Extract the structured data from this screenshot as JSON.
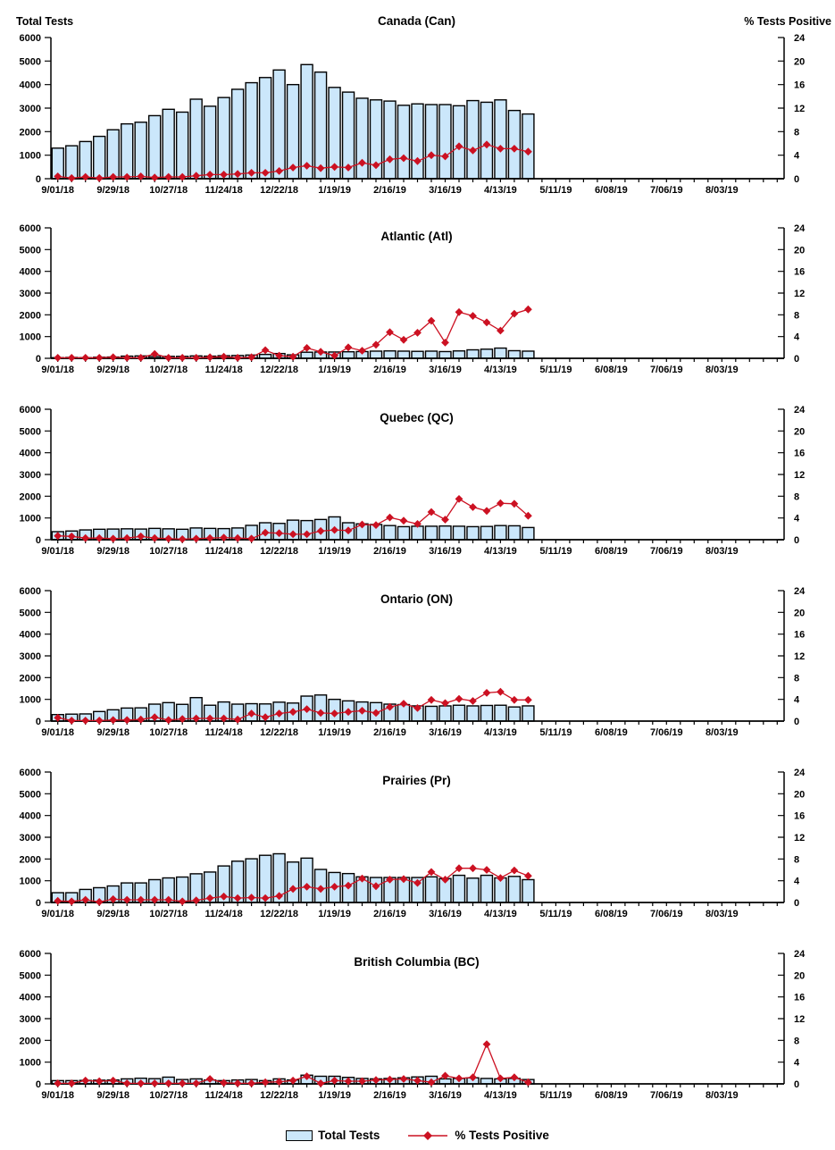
{
  "page": {
    "background": "#FFFFFF"
  },
  "colors": {
    "bar_fill": "#CBE7FB",
    "bar_stroke": "#000000",
    "line": "#CC1122",
    "text": "#000000",
    "axis": "#000000"
  },
  "axes": {
    "left_title": "Total Tests",
    "right_title": "% Tests Positive",
    "left_ticks": [
      "6000",
      "5000",
      "4000",
      "3000",
      "2000",
      "1000",
      "0"
    ],
    "right_ticks": [
      "24",
      "20",
      "16",
      "12",
      "8",
      "4",
      "0"
    ],
    "ylim_left": [
      0,
      6000
    ],
    "ylim_right": [
      0,
      24
    ],
    "x_tick_labels": [
      "9/01/18",
      "9/29/18",
      "10/27/18",
      "11/24/18",
      "12/22/18",
      "1/19/19",
      "2/16/19",
      "3/16/19",
      "4/13/19",
      "5/11/19",
      "6/08/19",
      "7/06/19",
      "8/03/19"
    ],
    "label_every_n_weeks": 4,
    "total_week_slots": 53,
    "grid": "off",
    "legend_position": "bottom-center"
  },
  "legend": {
    "items": [
      {
        "label": "Total Tests",
        "marker": "bar-swatch"
      },
      {
        "label": "% Tests Positive",
        "marker": "line-diamond"
      }
    ]
  },
  "chart_data": [
    {
      "type": "bar",
      "title": "Canada (Can)",
      "categories": [
        "9/01/18",
        "9/08/18",
        "9/15/18",
        "9/22/18",
        "9/29/18",
        "10/06/18",
        "10/13/18",
        "10/20/18",
        "10/27/18",
        "11/03/18",
        "11/10/18",
        "11/17/18",
        "11/24/18",
        "12/01/18",
        "12/08/18",
        "12/15/18",
        "12/22/18",
        "12/29/18",
        "1/05/19",
        "1/12/19",
        "1/19/19",
        "1/26/19",
        "2/02/19",
        "2/09/19",
        "2/16/19",
        "2/23/19",
        "3/02/19",
        "3/09/19",
        "3/16/19",
        "3/23/19",
        "3/30/19",
        "4/06/19",
        "4/13/19",
        "4/20/19",
        "4/27/19"
      ],
      "series": [
        {
          "name": "Total Tests",
          "type": "bar",
          "axis": "left",
          "values": [
            1300,
            1400,
            1580,
            1800,
            2080,
            2330,
            2400,
            2680,
            2950,
            2830,
            3380,
            3080,
            3450,
            3800,
            4080,
            4300,
            4620,
            4000,
            4850,
            4530,
            3880,
            3680,
            3420,
            3350,
            3300,
            3120,
            3180,
            3150,
            3150,
            3100,
            3320,
            3250,
            3350,
            2900,
            2750
          ]
        },
        {
          "name": "% Tests Positive",
          "type": "line",
          "axis": "right",
          "values": [
            0.4,
            0.1,
            0.3,
            0.1,
            0.3,
            0.3,
            0.4,
            0.2,
            0.3,
            0.3,
            0.5,
            0.7,
            0.7,
            0.8,
            1.0,
            1.0,
            1.3,
            1.9,
            2.2,
            1.8,
            2.0,
            1.9,
            2.7,
            2.3,
            3.3,
            3.5,
            3.0,
            4.0,
            3.8,
            5.5,
            4.8,
            5.8,
            5.1,
            5.1,
            4.6
          ]
        }
      ]
    },
    {
      "type": "bar",
      "title": "Atlantic (Atl)",
      "categories": [
        "9/01/18",
        "9/08/18",
        "9/15/18",
        "9/22/18",
        "9/29/18",
        "10/06/18",
        "10/13/18",
        "10/20/18",
        "10/27/18",
        "11/03/18",
        "11/10/18",
        "11/17/18",
        "11/24/18",
        "12/01/18",
        "12/08/18",
        "12/15/18",
        "12/22/18",
        "12/29/18",
        "1/05/19",
        "1/12/19",
        "1/19/19",
        "1/26/19",
        "2/02/19",
        "2/09/19",
        "2/16/19",
        "2/23/19",
        "3/02/19",
        "3/09/19",
        "3/16/19",
        "3/23/19",
        "3/30/19",
        "4/06/19",
        "4/13/19",
        "4/20/19",
        "4/27/19"
      ],
      "series": [
        {
          "name": "Total Tests",
          "type": "bar",
          "axis": "left",
          "values": [
            30,
            40,
            30,
            50,
            60,
            100,
            110,
            80,
            90,
            90,
            110,
            100,
            120,
            130,
            150,
            180,
            220,
            160,
            280,
            290,
            290,
            300,
            310,
            330,
            340,
            330,
            320,
            330,
            310,
            340,
            390,
            420,
            470,
            350,
            330
          ]
        },
        {
          "name": "% Tests Positive",
          "type": "line",
          "axis": "right",
          "values": [
            0.1,
            0.1,
            0.1,
            0.1,
            0.2,
            0.1,
            0.1,
            0.8,
            0.1,
            0.1,
            0.1,
            0.2,
            0.3,
            0.1,
            0.2,
            1.5,
            0.5,
            0.3,
            1.9,
            1.2,
            0.5,
            2.0,
            1.4,
            2.5,
            4.8,
            3.4,
            4.7,
            6.9,
            2.9,
            8.5,
            7.8,
            6.6,
            5.1,
            8.2,
            9.0
          ]
        }
      ]
    },
    {
      "type": "bar",
      "title": "Quebec (QC)",
      "categories": [
        "9/01/18",
        "9/08/18",
        "9/15/18",
        "9/22/18",
        "9/29/18",
        "10/06/18",
        "10/13/18",
        "10/20/18",
        "10/27/18",
        "11/03/18",
        "11/10/18",
        "11/17/18",
        "11/24/18",
        "12/01/18",
        "12/08/18",
        "12/15/18",
        "12/22/18",
        "12/29/18",
        "1/05/19",
        "1/12/19",
        "1/19/19",
        "1/26/19",
        "2/02/19",
        "2/09/19",
        "2/16/19",
        "2/23/19",
        "3/02/19",
        "3/09/19",
        "3/16/19",
        "3/23/19",
        "3/30/19",
        "4/06/19",
        "4/13/19",
        "4/20/19",
        "4/27/19"
      ],
      "series": [
        {
          "name": "Total Tests",
          "type": "bar",
          "axis": "left",
          "values": [
            370,
            400,
            450,
            480,
            490,
            500,
            490,
            520,
            500,
            480,
            540,
            520,
            510,
            540,
            660,
            780,
            750,
            900,
            880,
            930,
            1050,
            780,
            730,
            700,
            650,
            600,
            620,
            620,
            630,
            620,
            600,
            610,
            650,
            640,
            560
          ]
        },
        {
          "name": "% Tests Positive",
          "type": "line",
          "axis": "right",
          "values": [
            0.7,
            0.6,
            0.3,
            0.3,
            0.2,
            0.3,
            0.6,
            0.3,
            0.2,
            0.1,
            0.2,
            0.3,
            0.4,
            0.3,
            0.2,
            1.3,
            1.2,
            1.0,
            1.0,
            1.6,
            1.8,
            1.7,
            2.8,
            2.7,
            4.1,
            3.5,
            2.9,
            5.1,
            3.7,
            7.5,
            6.0,
            5.3,
            6.7,
            6.6,
            4.4
          ]
        }
      ]
    },
    {
      "type": "bar",
      "title": "Ontario (ON)",
      "categories": [
        "9/01/18",
        "9/08/18",
        "9/15/18",
        "9/22/18",
        "9/29/18",
        "10/06/18",
        "10/13/18",
        "10/20/18",
        "10/27/18",
        "11/03/18",
        "11/10/18",
        "11/17/18",
        "11/24/18",
        "12/01/18",
        "12/08/18",
        "12/15/18",
        "12/22/18",
        "12/29/18",
        "1/05/19",
        "1/12/19",
        "1/19/19",
        "1/26/19",
        "2/02/19",
        "2/09/19",
        "2/16/19",
        "2/23/19",
        "3/02/19",
        "3/09/19",
        "3/16/19",
        "3/23/19",
        "3/30/19",
        "4/06/19",
        "4/13/19",
        "4/20/19",
        "4/27/19"
      ],
      "series": [
        {
          "name": "Total Tests",
          "type": "bar",
          "axis": "left",
          "values": [
            300,
            320,
            330,
            440,
            520,
            600,
            610,
            780,
            850,
            770,
            1080,
            730,
            880,
            780,
            800,
            790,
            870,
            830,
            1150,
            1200,
            1000,
            930,
            880,
            850,
            780,
            760,
            700,
            680,
            700,
            730,
            700,
            720,
            730,
            650,
            700
          ]
        },
        {
          "name": "% Tests Positive",
          "type": "line",
          "axis": "right",
          "values": [
            0.6,
            0.1,
            0.1,
            0.1,
            0.2,
            0.2,
            0.3,
            0.7,
            0.2,
            0.4,
            0.5,
            0.5,
            0.5,
            0.3,
            1.4,
            0.7,
            1.4,
            1.7,
            2.2,
            1.5,
            1.4,
            1.7,
            1.9,
            1.5,
            2.6,
            3.2,
            2.4,
            3.9,
            3.3,
            4.1,
            3.7,
            5.2,
            5.4,
            3.9,
            3.9
          ]
        }
      ]
    },
    {
      "type": "bar",
      "title": "Prairies (Pr)",
      "categories": [
        "9/01/18",
        "9/08/18",
        "9/15/18",
        "9/22/18",
        "9/29/18",
        "10/06/18",
        "10/13/18",
        "10/20/18",
        "10/27/18",
        "11/03/18",
        "11/10/18",
        "11/17/18",
        "11/24/18",
        "12/01/18",
        "12/08/18",
        "12/15/18",
        "12/22/18",
        "12/29/18",
        "1/05/19",
        "1/12/19",
        "1/19/19",
        "1/26/19",
        "2/02/19",
        "2/09/19",
        "2/16/19",
        "2/23/19",
        "3/02/19",
        "3/09/19",
        "3/16/19",
        "3/23/19",
        "3/30/19",
        "4/06/19",
        "4/13/19",
        "4/20/19",
        "4/27/19"
      ],
      "series": [
        {
          "name": "Total Tests",
          "type": "bar",
          "axis": "left",
          "values": [
            450,
            450,
            600,
            680,
            760,
            900,
            900,
            1050,
            1130,
            1170,
            1320,
            1400,
            1680,
            1900,
            2010,
            2170,
            2240,
            1860,
            2040,
            1520,
            1380,
            1330,
            1180,
            1150,
            1150,
            1150,
            1150,
            1180,
            1100,
            1250,
            1120,
            1250,
            1130,
            1200,
            1050
          ]
        },
        {
          "name": "% Tests Positive",
          "type": "line",
          "axis": "right",
          "values": [
            0.3,
            0.2,
            0.5,
            0.1,
            0.6,
            0.5,
            0.5,
            0.5,
            0.5,
            0.2,
            0.4,
            0.8,
            1.1,
            0.8,
            0.9,
            0.8,
            1.2,
            2.5,
            2.9,
            2.5,
            2.9,
            3.1,
            4.4,
            3.0,
            4.2,
            4.3,
            3.6,
            5.6,
            4.2,
            6.3,
            6.3,
            6.0,
            4.5,
            5.9,
            4.9
          ]
        }
      ]
    },
    {
      "type": "bar",
      "title": "British Columbia (BC)",
      "categories": [
        "9/01/18",
        "9/08/18",
        "9/15/18",
        "9/22/18",
        "9/29/18",
        "10/06/18",
        "10/13/18",
        "10/20/18",
        "10/27/18",
        "11/03/18",
        "11/10/18",
        "11/17/18",
        "11/24/18",
        "12/01/18",
        "12/08/18",
        "12/15/18",
        "12/22/18",
        "12/29/18",
        "1/05/19",
        "1/12/19",
        "1/19/19",
        "1/26/19",
        "2/02/19",
        "2/09/19",
        "2/16/19",
        "2/23/19",
        "3/02/19",
        "3/09/19",
        "3/16/19",
        "3/23/19",
        "3/30/19",
        "4/06/19",
        "4/13/19",
        "4/20/19",
        "4/27/19"
      ],
      "series": [
        {
          "name": "Total Tests",
          "type": "bar",
          "axis": "left",
          "values": [
            150,
            150,
            160,
            170,
            180,
            230,
            260,
            240,
            310,
            200,
            230,
            180,
            150,
            180,
            200,
            150,
            230,
            180,
            400,
            350,
            350,
            300,
            250,
            230,
            250,
            280,
            320,
            350,
            230,
            250,
            280,
            250,
            230,
            250,
            200
          ]
        },
        {
          "name": "% Tests Positive",
          "type": "line",
          "axis": "right",
          "values": [
            0.1,
            0.1,
            0.6,
            0.5,
            0.6,
            0.1,
            0.1,
            0.1,
            0.1,
            0.1,
            0.1,
            0.9,
            0.2,
            0.1,
            0.1,
            0.3,
            0.4,
            0.6,
            1.4,
            0.1,
            0.6,
            0.5,
            0.5,
            0.7,
            0.8,
            0.9,
            0.6,
            0.3,
            1.5,
            1.0,
            1.2,
            7.3,
            1.0,
            1.2,
            0.3
          ]
        }
      ]
    }
  ]
}
